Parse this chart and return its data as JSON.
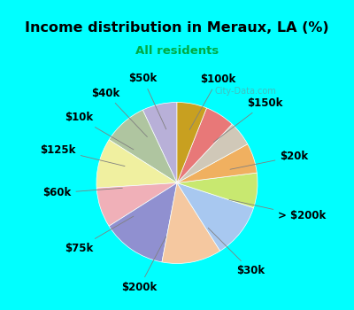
{
  "title": "Income distribution in Meraux, LA (%)",
  "subtitle": "All residents",
  "title_color": "#000000",
  "subtitle_color": "#00aa44",
  "background_top": "#00ffff",
  "background_chart": "#d8f5e8",
  "watermark": "City-Data.com",
  "labels": [
    "$100k",
    "$150k",
    "$20k",
    "> $200k",
    "$30k",
    "$200k",
    "$75k",
    "$60k",
    "$125k",
    "$10k",
    "$40k",
    "$50k"
  ],
  "values": [
    7,
    9,
    10,
    8,
    13,
    12,
    11,
    7,
    6,
    5,
    6,
    6
  ],
  "colors": [
    "#b8b0d8",
    "#afc5a0",
    "#f0f0a0",
    "#f0b0b8",
    "#9090d0",
    "#f5c8a0",
    "#a8c8f0",
    "#c8e870",
    "#f0b060",
    "#d0c8b8",
    "#e87878",
    "#c8a020"
  ],
  "label_fontsize": 8.5,
  "figsize": [
    4.0,
    3.5
  ],
  "dpi": 100
}
